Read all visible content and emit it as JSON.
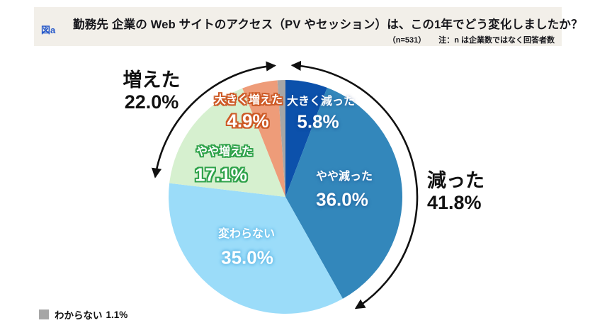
{
  "figure_label": "図a",
  "header": {
    "title": "勤務先 企業の Web サイトのアクセス（PV やセッション）は、この1年でどう変化しましたか？",
    "note_n": "（n=531）",
    "note_label": "注：n は企業数ではなく回答者数"
  },
  "chart_data": {
    "type": "pie",
    "title": "勤務先 企業の Web サイトのアクセス（PV やセッション）は、この1年でどう変化しましたか？",
    "n": 531,
    "start_angle_deg": 0,
    "direction": "clockwise",
    "slices": [
      {
        "label": "大きく減った",
        "value": 5.8,
        "value_text": "5.8%",
        "color": "#0C51AB"
      },
      {
        "label": "やや減った",
        "value": 36.0,
        "value_text": "36.0%",
        "color": "#3387BB"
      },
      {
        "label": "変わらない",
        "value": 35.0,
        "value_text": "35.0%",
        "color": "#9BDCF9"
      },
      {
        "label": "やや増えた",
        "value": 17.1,
        "value_text": "17.1%",
        "color": "#D6F0CF"
      },
      {
        "label": "大きく増えた",
        "value": 4.9,
        "value_text": "4.9%",
        "color": "#EE9C79"
      },
      {
        "label": "わからない",
        "value": 1.1,
        "value_text": "1.1%",
        "color": "#A6A6A6"
      }
    ],
    "group_annotations": [
      {
        "label": "増えた",
        "value_text": "22.0%",
        "side": "left",
        "covers": [
          "やや増えた",
          "大きく増えた"
        ]
      },
      {
        "label": "減った",
        "value_text": "41.8%",
        "side": "right",
        "covers": [
          "大きく減った",
          "やや減った"
        ]
      }
    ],
    "legend_position": "bottom-left",
    "arrow_color": "#111111"
  }
}
